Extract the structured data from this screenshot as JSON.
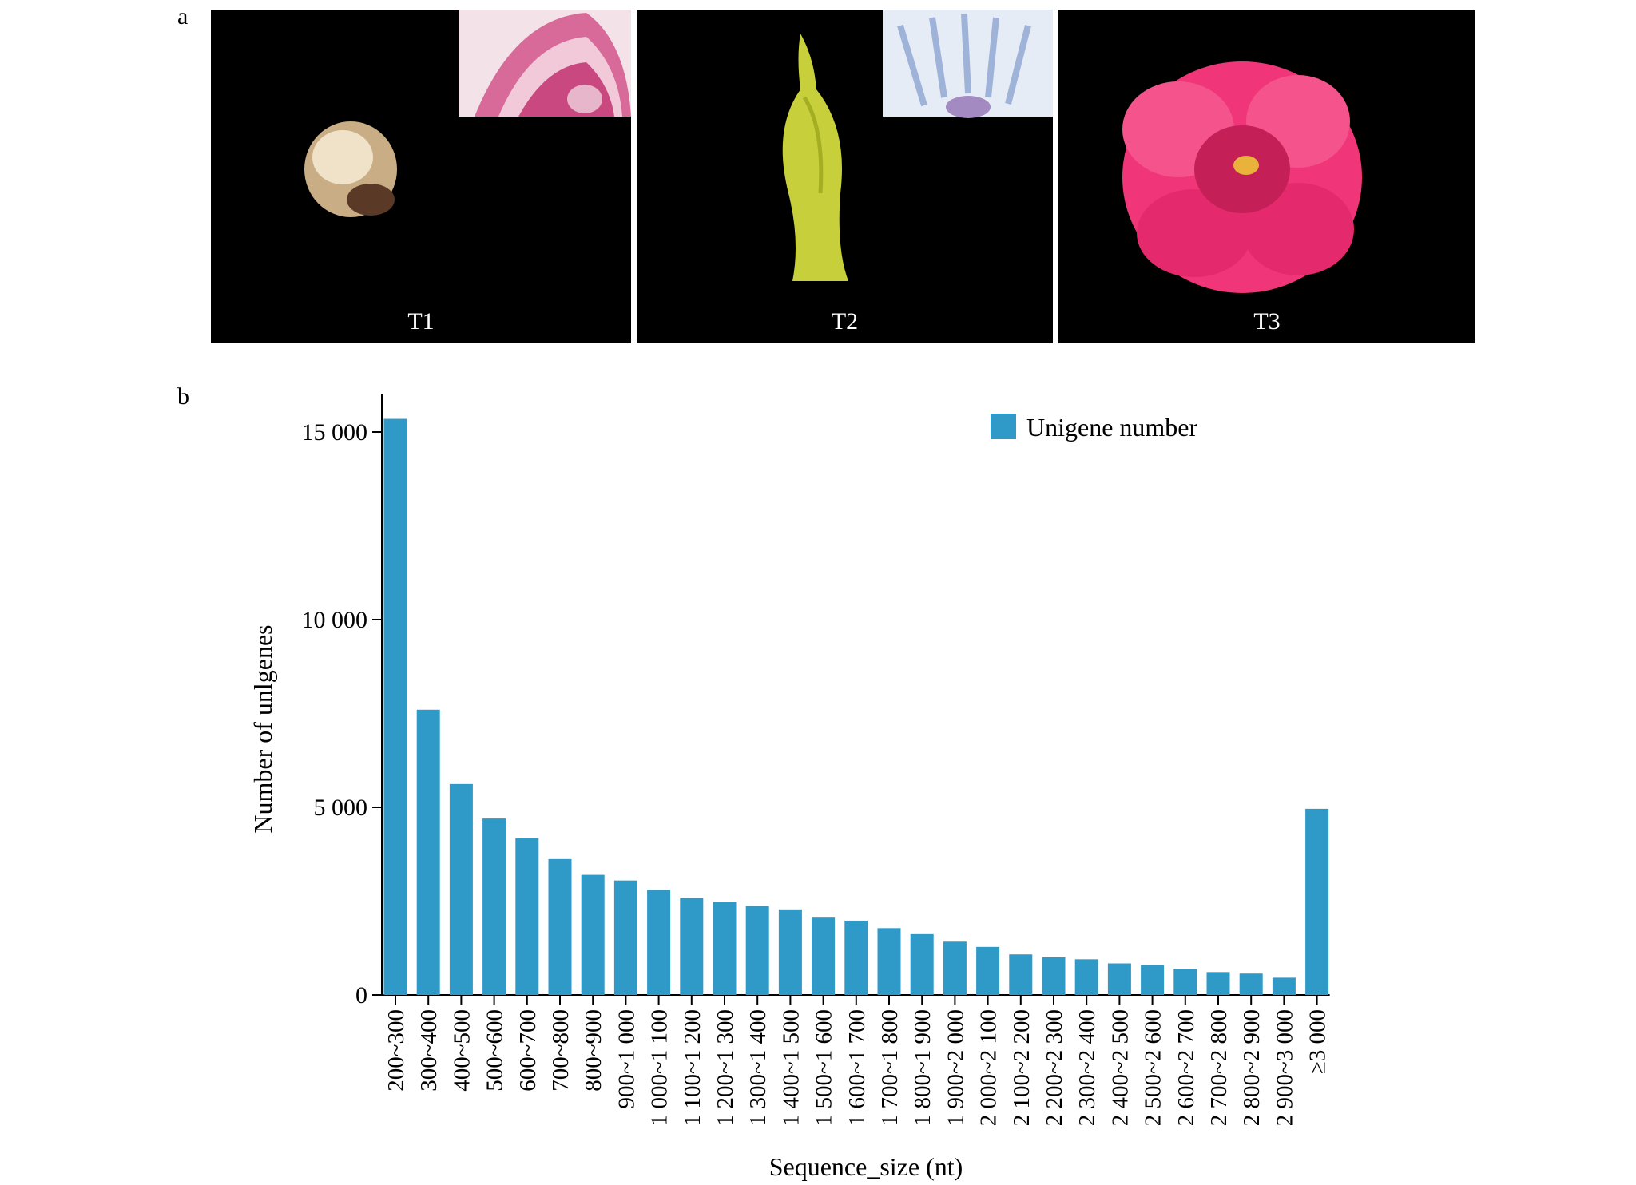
{
  "panels": {
    "a": {
      "letter": "a",
      "photos": [
        {
          "label": "T1"
        },
        {
          "label": "T2"
        },
        {
          "label": "T3"
        }
      ]
    },
    "b": {
      "letter": "b"
    }
  },
  "colors": {
    "bar": "#2f99c8",
    "photo_bg": "#000000",
    "flower": "#f0357a",
    "bud": "#c8d23a"
  },
  "chart_data": {
    "type": "bar",
    "xlabel": "Sequence_size (nt)",
    "ylabel": "Number of unlgenes",
    "ylim": [
      0,
      16000
    ],
    "yticks": [
      0,
      5000,
      10000,
      15000
    ],
    "yticklabels": [
      "0",
      "5 000",
      "10 000",
      "15 000"
    ],
    "legend_position": "top-right",
    "categories": [
      "200~300",
      "300~400",
      "400~500",
      "500~600",
      "600~700",
      "700~800",
      "800~900",
      "900~1 000",
      "1 000~1 100",
      "1 100~1 200",
      "1 200~1 300",
      "1 300~1 400",
      "1 400~1 500",
      "1 500~1 600",
      "1 600~1 700",
      "1 700~1 800",
      "1 800~1 900",
      "1 900~2 000",
      "2 000~2 100",
      "2 100~2 200",
      "2 200~2 300",
      "2 300~2 400",
      "2 400~2 500",
      "2 500~2 600",
      "2 600~2 700",
      "2 700~2 800",
      "2 800~2 900",
      "2 900~3 000",
      "≥3 000"
    ],
    "series": [
      {
        "name": "Unigene number",
        "values": [
          15350,
          7600,
          5620,
          4700,
          4180,
          3620,
          3200,
          3050,
          2800,
          2580,
          2480,
          2370,
          2280,
          2060,
          1980,
          1780,
          1620,
          1420,
          1280,
          1080,
          1000,
          950,
          840,
          800,
          700,
          610,
          570,
          460,
          4960
        ]
      }
    ]
  }
}
